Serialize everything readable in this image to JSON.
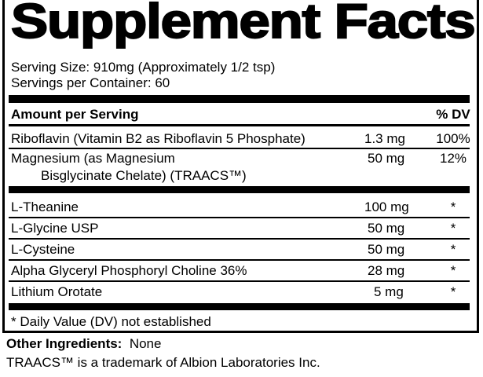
{
  "title": "Supplement Facts",
  "serving_size": "Serving Size: 910mg (Approximately 1/2 tsp)",
  "servings_per_container": "Servings per Container: 60",
  "header": {
    "amount": "Amount per Serving",
    "dv": "% DV"
  },
  "vitamins": [
    {
      "name": "Riboflavin (Vitamin B2 as Riboflavin 5 Phosphate)",
      "amount": "1.3 mg",
      "dv": "100%"
    },
    {
      "name": "Magnesium (as Magnesium",
      "name_line2": "Bisglycinate Chelate) (TRAACS™)",
      "amount": "50 mg",
      "dv": "12%"
    }
  ],
  "others": [
    {
      "name": "L-Theanine",
      "amount": "100 mg",
      "dv": "*"
    },
    {
      "name": "L-Glycine USP",
      "amount": "50 mg",
      "dv": "*"
    },
    {
      "name": "L-Cysteine",
      "amount": "50 mg",
      "dv": "*"
    },
    {
      "name": "Alpha Glyceryl Phosphoryl Choline 36%",
      "amount": "28 mg",
      "dv": "*"
    },
    {
      "name": "Lithium Orotate",
      "amount": "5 mg",
      "dv": "*"
    }
  ],
  "footnote": "* Daily Value (DV) not established",
  "other_ingredients": {
    "label": "Other Ingredients:",
    "value": "None"
  },
  "trademark": "TRAACS™ is a trademark of Albion Laboratories Inc."
}
